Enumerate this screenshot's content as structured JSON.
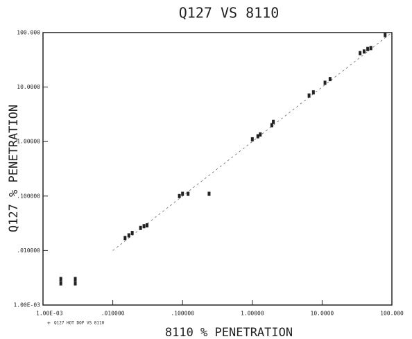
{
  "chart_data": {
    "type": "scatter",
    "title": "Q127 VS 8110",
    "xlabel": "8110 % PENETRATION",
    "ylabel": "Q127 % PENETRATION",
    "x": [
      0.0018,
      0.0018,
      0.0029,
      0.0029,
      0.015,
      0.017,
      0.019,
      0.025,
      0.028,
      0.031,
      0.09,
      0.1,
      0.12,
      0.24,
      1.0,
      1.2,
      1.3,
      1.9,
      2.0,
      6.5,
      7.5,
      11,
      13,
      35,
      40,
      45,
      50,
      80
    ],
    "series": [
      {
        "name": "Q127 HOT DOP VS 8110",
        "color": "#222222",
        "values": [
          0.0025,
          0.003,
          0.0025,
          0.003,
          0.017,
          0.019,
          0.021,
          0.026,
          0.028,
          0.029,
          0.1,
          0.11,
          0.11,
          0.11,
          1.1,
          1.25,
          1.35,
          2.0,
          2.3,
          7,
          8,
          12,
          14,
          42,
          45,
          50,
          52,
          90
        ]
      }
    ],
    "xscale": "log",
    "yscale": "log",
    "xlim": [
      0.001,
      100
    ],
    "ylim": [
      0.001,
      100
    ],
    "xticks": [
      {
        "value": 0.001,
        "label": "1.00E-03"
      },
      {
        "value": 0.01,
        "label": ".010000"
      },
      {
        "value": 0.1,
        "label": ".100000"
      },
      {
        "value": 1,
        "label": "1.00000"
      },
      {
        "value": 10,
        "label": "10.0000"
      },
      {
        "value": 100,
        "label": "100.000"
      }
    ],
    "yticks": [
      {
        "value": 0.001,
        "label": "1.00E-03"
      },
      {
        "value": 0.01,
        "label": ".010000"
      },
      {
        "value": 0.1,
        "label": ".100000"
      },
      {
        "value": 1,
        "label": "1.00000"
      },
      {
        "value": 10,
        "label": "10.0000"
      },
      {
        "value": 100,
        "label": "100.000"
      }
    ],
    "reference_line": true,
    "legend": "bottom-left"
  }
}
